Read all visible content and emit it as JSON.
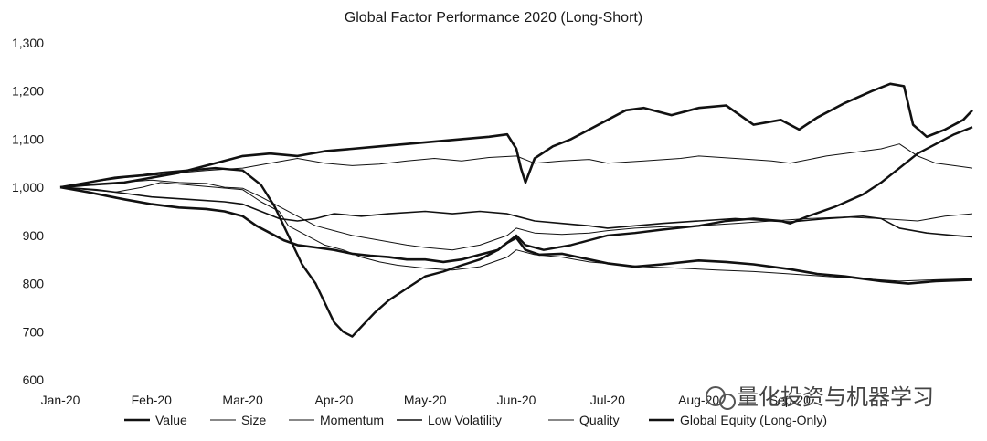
{
  "chart_data": {
    "type": "line",
    "title": "Global Factor Performance 2020 (Long-Short)",
    "xlabel": "",
    "ylabel": "",
    "ylim": [
      600,
      1300
    ],
    "yticks": [
      "1,300",
      "1,200",
      "1,100",
      "1,000",
      "900",
      "800",
      "700",
      "600"
    ],
    "ytick_values": [
      1300,
      1200,
      1100,
      1000,
      900,
      800,
      700,
      600
    ],
    "xlim": [
      0,
      10
    ],
    "xticks": [
      "Jan-20",
      "Feb-20",
      "Mar-20",
      "Apr-20",
      "May-20",
      "Jun-20",
      "Jul-20",
      "Aug-20",
      "Sep-20"
    ],
    "xtick_values": [
      0,
      1,
      2,
      3,
      4,
      5,
      6,
      7,
      8
    ],
    "grid": false,
    "legend_position": "bottom",
    "series": [
      {
        "name": "Value",
        "width": 2.6,
        "points": [
          [
            0,
            1000
          ],
          [
            0.3,
            990
          ],
          [
            0.7,
            975
          ],
          [
            1,
            965
          ],
          [
            1.3,
            958
          ],
          [
            1.6,
            955
          ],
          [
            1.8,
            950
          ],
          [
            2,
            940
          ],
          [
            2.15,
            920
          ],
          [
            2.3,
            905
          ],
          [
            2.45,
            890
          ],
          [
            2.6,
            880
          ],
          [
            2.8,
            875
          ],
          [
            3,
            870
          ],
          [
            3.2,
            862
          ],
          [
            3.4,
            858
          ],
          [
            3.6,
            855
          ],
          [
            3.8,
            850
          ],
          [
            4,
            850
          ],
          [
            4.2,
            845
          ],
          [
            4.4,
            850
          ],
          [
            4.6,
            860
          ],
          [
            4.8,
            870
          ],
          [
            4.9,
            885
          ],
          [
            5.0,
            895
          ],
          [
            5.1,
            870
          ],
          [
            5.25,
            860
          ],
          [
            5.5,
            862
          ],
          [
            5.8,
            850
          ],
          [
            6.0,
            842
          ],
          [
            6.3,
            835
          ],
          [
            6.6,
            840
          ],
          [
            7.0,
            848
          ],
          [
            7.3,
            845
          ],
          [
            7.6,
            840
          ],
          [
            8.0,
            830
          ],
          [
            8.3,
            820
          ],
          [
            8.6,
            815
          ],
          [
            9.0,
            805
          ],
          [
            9.3,
            800
          ],
          [
            9.6,
            805
          ],
          [
            10,
            808
          ]
        ]
      },
      {
        "name": "Size",
        "width": 1.0,
        "points": [
          [
            0,
            1000
          ],
          [
            0.4,
            1005
          ],
          [
            0.8,
            1012
          ],
          [
            1,
            1015
          ],
          [
            1.3,
            1010
          ],
          [
            1.6,
            1008
          ],
          [
            1.8,
            1000
          ],
          [
            2,
            998
          ],
          [
            2.2,
            980
          ],
          [
            2.4,
            960
          ],
          [
            2.6,
            940
          ],
          [
            2.8,
            920
          ],
          [
            3,
            910
          ],
          [
            3.2,
            900
          ],
          [
            3.5,
            890
          ],
          [
            3.8,
            880
          ],
          [
            4,
            875
          ],
          [
            4.3,
            870
          ],
          [
            4.6,
            880
          ],
          [
            4.9,
            900
          ],
          [
            5,
            915
          ],
          [
            5.2,
            905
          ],
          [
            5.5,
            902
          ],
          [
            5.8,
            905
          ],
          [
            6,
            910
          ],
          [
            6.3,
            915
          ],
          [
            6.6,
            918
          ],
          [
            7,
            920
          ],
          [
            7.4,
            925
          ],
          [
            7.8,
            930
          ],
          [
            8.2,
            935
          ],
          [
            8.6,
            938
          ],
          [
            9,
            935
          ],
          [
            9.4,
            930
          ],
          [
            9.7,
            940
          ],
          [
            10,
            945
          ]
        ]
      },
      {
        "name": "Momentum",
        "width": 1.0,
        "points": [
          [
            0,
            1000
          ],
          [
            0.3,
            1010
          ],
          [
            0.7,
            1020
          ],
          [
            1,
            1025
          ],
          [
            1.3,
            1030
          ],
          [
            1.6,
            1035
          ],
          [
            2,
            1040
          ],
          [
            2.3,
            1050
          ],
          [
            2.6,
            1060
          ],
          [
            2.9,
            1050
          ],
          [
            3.2,
            1045
          ],
          [
            3.5,
            1048
          ],
          [
            3.8,
            1055
          ],
          [
            4.1,
            1060
          ],
          [
            4.4,
            1055
          ],
          [
            4.7,
            1062
          ],
          [
            5,
            1065
          ],
          [
            5.2,
            1050
          ],
          [
            5.5,
            1055
          ],
          [
            5.8,
            1058
          ],
          [
            6,
            1050
          ],
          [
            6.4,
            1055
          ],
          [
            6.8,
            1060
          ],
          [
            7,
            1065
          ],
          [
            7.4,
            1060
          ],
          [
            7.8,
            1055
          ],
          [
            8,
            1050
          ],
          [
            8.4,
            1065
          ],
          [
            8.8,
            1075
          ],
          [
            9,
            1080
          ],
          [
            9.2,
            1090
          ],
          [
            9.4,
            1065
          ],
          [
            9.6,
            1050
          ],
          [
            9.8,
            1045
          ],
          [
            10,
            1040
          ]
        ]
      },
      {
        "name": "Low Volatility",
        "width": 1.6,
        "points": [
          [
            0,
            1000
          ],
          [
            0.4,
            995
          ],
          [
            0.8,
            985
          ],
          [
            1,
            980
          ],
          [
            1.4,
            975
          ],
          [
            1.8,
            970
          ],
          [
            2,
            965
          ],
          [
            2.2,
            950
          ],
          [
            2.4,
            935
          ],
          [
            2.6,
            930
          ],
          [
            2.8,
            935
          ],
          [
            3,
            945
          ],
          [
            3.3,
            940
          ],
          [
            3.6,
            945
          ],
          [
            4,
            950
          ],
          [
            4.3,
            945
          ],
          [
            4.6,
            950
          ],
          [
            4.9,
            945
          ],
          [
            5,
            940
          ],
          [
            5.2,
            930
          ],
          [
            5.5,
            925
          ],
          [
            5.8,
            920
          ],
          [
            6,
            915
          ],
          [
            6.3,
            920
          ],
          [
            6.6,
            925
          ],
          [
            7,
            930
          ],
          [
            7.4,
            935
          ],
          [
            7.8,
            930
          ],
          [
            8,
            928
          ],
          [
            8.4,
            935
          ],
          [
            8.8,
            940
          ],
          [
            9,
            935
          ],
          [
            9.2,
            915
          ],
          [
            9.5,
            905
          ],
          [
            9.8,
            900
          ],
          [
            10,
            897
          ]
        ]
      },
      {
        "name": "Quality",
        "width": 1.0,
        "points": [
          [
            0,
            1000
          ],
          [
            0.3,
            995
          ],
          [
            0.6,
            990
          ],
          [
            0.9,
            1000
          ],
          [
            1.1,
            1010
          ],
          [
            1.4,
            1005
          ],
          [
            1.7,
            1000
          ],
          [
            2,
            995
          ],
          [
            2.2,
            970
          ],
          [
            2.4,
            950
          ],
          [
            2.5,
            920
          ],
          [
            2.7,
            900
          ],
          [
            2.9,
            880
          ],
          [
            3.1,
            870
          ],
          [
            3.3,
            855
          ],
          [
            3.5,
            845
          ],
          [
            3.7,
            838
          ],
          [
            4,
            832
          ],
          [
            4.3,
            828
          ],
          [
            4.6,
            835
          ],
          [
            4.9,
            855
          ],
          [
            5,
            870
          ],
          [
            5.2,
            860
          ],
          [
            5.5,
            855
          ],
          [
            5.8,
            845
          ],
          [
            6.1,
            840
          ],
          [
            6.4,
            835
          ],
          [
            6.8,
            832
          ],
          [
            7.2,
            828
          ],
          [
            7.6,
            825
          ],
          [
            8,
            820
          ],
          [
            8.4,
            815
          ],
          [
            8.8,
            810
          ],
          [
            9.2,
            805
          ],
          [
            9.6,
            808
          ],
          [
            10,
            810
          ]
        ]
      },
      {
        "name": "Global Equity (Long-Only)",
        "width": 2.4,
        "points": [
          [
            0,
            1000
          ],
          [
            0.3,
            1010
          ],
          [
            0.6,
            1020
          ],
          [
            0.9,
            1025
          ],
          [
            1.1,
            1030
          ],
          [
            1.4,
            1035
          ],
          [
            1.7,
            1040
          ],
          [
            2,
            1035
          ],
          [
            2.2,
            1005
          ],
          [
            2.35,
            960
          ],
          [
            2.5,
            900
          ],
          [
            2.65,
            840
          ],
          [
            2.8,
            800
          ],
          [
            2.9,
            760
          ],
          [
            3.0,
            720
          ],
          [
            3.1,
            700
          ],
          [
            3.2,
            690
          ],
          [
            3.3,
            710
          ],
          [
            3.45,
            740
          ],
          [
            3.6,
            765
          ],
          [
            3.8,
            790
          ],
          [
            4,
            815
          ],
          [
            4.2,
            825
          ],
          [
            4.4,
            838
          ],
          [
            4.6,
            850
          ],
          [
            4.8,
            870
          ],
          [
            4.9,
            885
          ],
          [
            5.0,
            900
          ],
          [
            5.1,
            880
          ],
          [
            5.3,
            870
          ],
          [
            5.6,
            880
          ],
          [
            5.8,
            890
          ],
          [
            6,
            900
          ],
          [
            6.3,
            905
          ],
          [
            6.6,
            912
          ],
          [
            7,
            920
          ],
          [
            7.3,
            930
          ],
          [
            7.6,
            935
          ],
          [
            7.9,
            930
          ],
          [
            8,
            925
          ],
          [
            8.2,
            940
          ],
          [
            8.5,
            960
          ],
          [
            8.8,
            985
          ],
          [
            9,
            1010
          ],
          [
            9.2,
            1040
          ],
          [
            9.4,
            1070
          ],
          [
            9.6,
            1090
          ],
          [
            9.8,
            1110
          ],
          [
            10,
            1125
          ]
        ]
      },
      {
        "name": "",
        "width": 2.6,
        "points": [
          [
            0,
            1000
          ],
          [
            0.3,
            1005
          ],
          [
            0.7,
            1010
          ],
          [
            1,
            1020
          ],
          [
            1.3,
            1030
          ],
          [
            1.6,
            1045
          ],
          [
            2,
            1065
          ],
          [
            2.3,
            1070
          ],
          [
            2.6,
            1065
          ],
          [
            2.9,
            1075
          ],
          [
            3.2,
            1080
          ],
          [
            3.5,
            1085
          ],
          [
            3.8,
            1090
          ],
          [
            4.1,
            1095
          ],
          [
            4.4,
            1100
          ],
          [
            4.7,
            1105
          ],
          [
            4.9,
            1110
          ],
          [
            5,
            1080
          ],
          [
            5.05,
            1040
          ],
          [
            5.1,
            1010
          ],
          [
            5.2,
            1060
          ],
          [
            5.4,
            1085
          ],
          [
            5.6,
            1100
          ],
          [
            5.8,
            1120
          ],
          [
            6,
            1140
          ],
          [
            6.2,
            1160
          ],
          [
            6.4,
            1165
          ],
          [
            6.7,
            1150
          ],
          [
            7,
            1165
          ],
          [
            7.3,
            1170
          ],
          [
            7.6,
            1130
          ],
          [
            7.9,
            1140
          ],
          [
            8.1,
            1120
          ],
          [
            8.3,
            1145
          ],
          [
            8.6,
            1175
          ],
          [
            8.9,
            1200
          ],
          [
            9.1,
            1215
          ],
          [
            9.25,
            1210
          ],
          [
            9.35,
            1130
          ],
          [
            9.5,
            1105
          ],
          [
            9.7,
            1120
          ],
          [
            9.9,
            1140
          ],
          [
            10,
            1160
          ]
        ]
      }
    ]
  },
  "watermark": {
    "text": "量化投资与机器学习",
    "icon": "wechat-icon"
  }
}
